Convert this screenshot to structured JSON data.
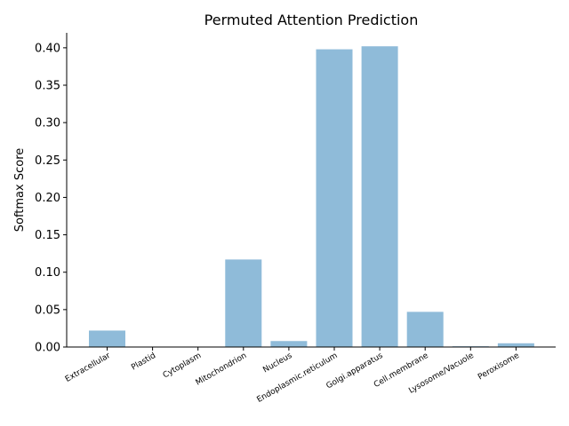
{
  "chart_data": {
    "type": "bar",
    "title": "Permuted Attention Prediction",
    "xlabel": "",
    "ylabel": "Softmax Score",
    "categories": [
      "Extracellular",
      "Plastid",
      "Cytoplasm",
      "Mitochondrion",
      "Nucleus",
      "Endoplasmic.reticulum",
      "Golgi.apparatus",
      "Cell.membrane",
      "Lysosome/Vacuole",
      "Peroxisome"
    ],
    "values": [
      0.022,
      0.0,
      0.0,
      0.117,
      0.008,
      0.398,
      0.402,
      0.047,
      0.001,
      0.005
    ],
    "ylim": [
      0,
      0.42
    ],
    "yticks": [
      "0.00",
      "0.05",
      "0.10",
      "0.15",
      "0.20",
      "0.25",
      "0.30",
      "0.35",
      "0.40"
    ],
    "bar_color": "#8fbbd9",
    "grid": false,
    "legend": "none"
  }
}
